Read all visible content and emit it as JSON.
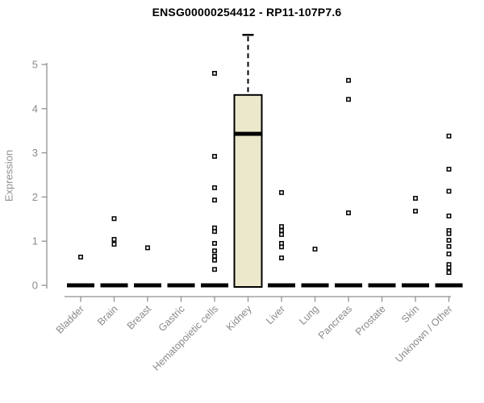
{
  "chart_data": {
    "type": "boxplot",
    "title": "ENSG00000254412 - RP11-107P7.6",
    "ylabel": "Expression",
    "xlabel": "",
    "ylim": [
      0,
      5.8
    ],
    "yticks": [
      0,
      1,
      2,
      3,
      4,
      5
    ],
    "grid": "off",
    "legend": "none",
    "categories": [
      "Bladder",
      "Brain",
      "Breast",
      "Gastric",
      "Hematopoietic cells",
      "Kidney",
      "Liver",
      "Lung",
      "Pancreas",
      "Prostate",
      "Skin",
      "Unknown / Other"
    ],
    "boxes": [
      {
        "category": "Bladder",
        "q1": 0,
        "median": 0,
        "q3": 0,
        "whisker_low": 0,
        "whisker_high": 0,
        "outliers": [
          0.64
        ]
      },
      {
        "category": "Brain",
        "q1": 0,
        "median": 0,
        "q3": 0,
        "whisker_low": 0,
        "whisker_high": 0,
        "outliers": [
          1.51,
          1.04,
          0.93
        ]
      },
      {
        "category": "Breast",
        "q1": 0,
        "median": 0,
        "q3": 0,
        "whisker_low": 0,
        "whisker_high": 0,
        "outliers": [
          0.85
        ]
      },
      {
        "category": "Gastric",
        "q1": 0,
        "median": 0,
        "q3": 0,
        "whisker_low": 0,
        "whisker_high": 0,
        "outliers": []
      },
      {
        "category": "Hematopoietic cells",
        "q1": 0,
        "median": 0,
        "q3": 0,
        "whisker_low": 0,
        "whisker_high": 0,
        "outliers": [
          4.8,
          2.92,
          2.21,
          1.93,
          1.3,
          1.22,
          0.95,
          0.78,
          0.66,
          0.57,
          0.36
        ]
      },
      {
        "category": "Kidney",
        "q1": 0,
        "median": 3.43,
        "q3": 4.31,
        "whisker_low": 0,
        "whisker_high": 5.67,
        "outliers": []
      },
      {
        "category": "Liver",
        "q1": 0,
        "median": 0,
        "q3": 0,
        "whisker_low": 0,
        "whisker_high": 0,
        "outliers": [
          2.1,
          1.33,
          1.24,
          1.15,
          0.95,
          0.87,
          0.62
        ]
      },
      {
        "category": "Lung",
        "q1": 0,
        "median": 0,
        "q3": 0,
        "whisker_low": 0,
        "whisker_high": 0,
        "outliers": [
          0.82
        ]
      },
      {
        "category": "Pancreas",
        "q1": 0,
        "median": 0,
        "q3": 0,
        "whisker_low": 0,
        "whisker_high": 0,
        "outliers": [
          4.64,
          4.21,
          1.64
        ]
      },
      {
        "category": "Prostate",
        "q1": 0,
        "median": 0,
        "q3": 0,
        "whisker_low": 0,
        "whisker_high": 0,
        "outliers": []
      },
      {
        "category": "Skin",
        "q1": 0,
        "median": 0,
        "q3": 0,
        "whisker_low": 0,
        "whisker_high": 0,
        "outliers": [
          1.97,
          1.68
        ]
      },
      {
        "category": "Unknown / Other",
        "q1": 0,
        "median": 0,
        "q3": 0,
        "whisker_low": 0,
        "whisker_high": 0,
        "outliers": [
          3.38,
          2.63,
          2.13,
          1.57,
          1.24,
          1.17,
          1.02,
          0.88,
          0.71,
          0.47,
          0.4,
          0.29
        ]
      }
    ],
    "colors": {
      "box_fill": "#ece8cc",
      "box_stroke": "#000000",
      "median": "#000000",
      "zero_bar": "#000000",
      "outlier_stroke": "#000000",
      "outlier_fill": "#ffffff",
      "axis_line": "#919191",
      "tick_label": "#8a8a8a",
      "title": "#000000",
      "background": "#ffffff"
    }
  }
}
